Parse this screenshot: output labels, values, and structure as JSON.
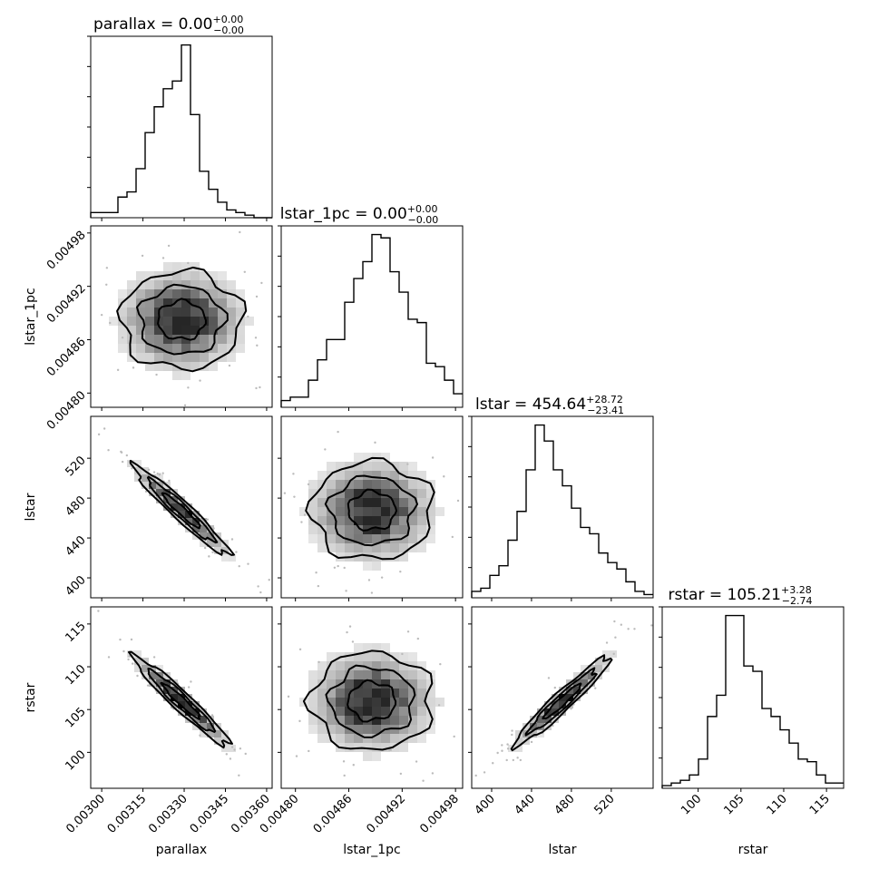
{
  "chart_data": {
    "type": "corner",
    "parameters": [
      "parallax",
      "lstar_1pc",
      "lstar",
      "rstar"
    ],
    "titles": [
      {
        "param": "parallax",
        "text": "parallax = 0.00",
        "sup": "+0.00",
        "sub": "−0.00"
      },
      {
        "param": "lstar_1pc",
        "text": "lstar_1pc = 0.00",
        "sup": "+0.00",
        "sub": "−0.00"
      },
      {
        "param": "lstar",
        "text": "lstar = 454.64",
        "sup": "+28.72",
        "sub": "−23.41"
      },
      {
        "param": "rstar",
        "text": "rstar = 105.21",
        "sup": "+3.28",
        "sub": "−2.74"
      }
    ],
    "axes": [
      {
        "label": "parallax",
        "range": [
          0.00296,
          0.00362
        ],
        "ticks": [
          0.003,
          0.00315,
          0.0033,
          0.00345,
          0.0036
        ],
        "tick_labels": [
          "0.00300",
          "0.00315",
          "0.00330",
          "0.00345",
          "0.00360"
        ]
      },
      {
        "label": "lstar_1pc",
        "range": [
          0.004784,
          0.004988
        ],
        "ticks": [
          0.0048,
          0.00486,
          0.00492,
          0.00498
        ],
        "tick_labels": [
          "0.00480",
          "0.00486",
          "0.00492",
          "0.00498"
        ]
      },
      {
        "label": "lstar",
        "range": [
          380,
          562
        ],
        "ticks": [
          400,
          440,
          480,
          520
        ],
        "tick_labels": [
          "400",
          "440",
          "480",
          "520"
        ]
      },
      {
        "label": "rstar",
        "range": [
          95.8,
          117.0
        ],
        "ticks": [
          100,
          105,
          110,
          115
        ],
        "tick_labels": [
          "100",
          "105",
          "110",
          "115"
        ]
      }
    ],
    "histograms": [
      {
        "param": "parallax",
        "bins": 20,
        "counts": [
          2,
          2,
          2,
          8,
          10,
          19,
          33,
          43,
          50,
          53,
          67,
          40,
          18,
          11,
          6,
          3,
          2,
          1,
          0,
          0
        ]
      },
      {
        "param": "lstar_1pc",
        "bins": 20,
        "counts": [
          2,
          3,
          3,
          8,
          14,
          20,
          20,
          31,
          38,
          43,
          51,
          50,
          40,
          34,
          26,
          25,
          13,
          12,
          8,
          4
        ]
      },
      {
        "param": "lstar",
        "bins": 20,
        "counts": [
          2,
          3,
          7,
          10,
          18,
          27,
          40,
          54,
          49,
          40,
          35,
          28,
          22,
          20,
          14,
          11,
          9,
          5,
          2,
          1
        ]
      },
      {
        "param": "rstar",
        "bins": 20,
        "counts": [
          1,
          2,
          3,
          5,
          11,
          27,
          35,
          65,
          65,
          46,
          44,
          30,
          27,
          22,
          17,
          11,
          10,
          5,
          2,
          2
        ]
      }
    ],
    "pairs": [
      {
        "x": "parallax",
        "y": "lstar_1pc",
        "correlation": 0.0
      },
      {
        "x": "parallax",
        "y": "lstar",
        "correlation": -0.97
      },
      {
        "x": "lstar_1pc",
        "y": "lstar",
        "correlation": 0.0
      },
      {
        "x": "parallax",
        "y": "rstar",
        "correlation": -0.96
      },
      {
        "x": "lstar_1pc",
        "y": "rstar",
        "correlation": 0.0
      },
      {
        "x": "lstar",
        "y": "rstar",
        "correlation": 0.98
      }
    ],
    "grid": false,
    "colors": {
      "line": "#000000",
      "density_dark": "#000000",
      "density_light": "#f2f2f2"
    }
  }
}
